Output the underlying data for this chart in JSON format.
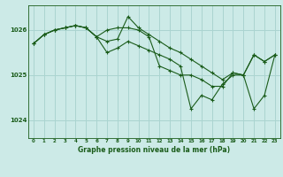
{
  "title": "Graphe pression niveau de la mer (hPa)",
  "background_color": "#cceae7",
  "grid_color": "#aad4d0",
  "line_color": "#1a5c1a",
  "marker_color": "#1a5c1a",
  "xlim": [
    -0.5,
    23.5
  ],
  "ylim": [
    1023.6,
    1026.55
  ],
  "yticks": [
    1024,
    1025,
    1026
  ],
  "xticks": [
    0,
    1,
    2,
    3,
    4,
    5,
    6,
    7,
    8,
    9,
    10,
    11,
    12,
    13,
    14,
    15,
    16,
    17,
    18,
    19,
    20,
    21,
    22,
    23
  ],
  "series": [
    [
      1025.7,
      1025.9,
      1026.0,
      1026.05,
      1026.1,
      1026.05,
      1025.85,
      1025.75,
      1025.8,
      1026.3,
      1026.05,
      1025.9,
      1025.75,
      1025.6,
      1025.5,
      1025.35,
      1025.2,
      1025.05,
      1024.9,
      1025.05,
      1025.0,
      1025.45,
      1025.3,
      1025.45
    ],
    [
      1025.7,
      1025.9,
      1026.0,
      1026.05,
      1026.1,
      1026.05,
      1025.85,
      1026.0,
      1026.05,
      1026.05,
      1026.0,
      1025.85,
      1025.2,
      1025.1,
      1025.0,
      1025.0,
      1024.9,
      1024.75,
      1024.75,
      1025.05,
      1025.0,
      1025.45,
      1025.3,
      1025.45
    ],
    [
      1025.7,
      1025.9,
      1026.0,
      1026.05,
      1026.1,
      1026.05,
      1025.85,
      1025.5,
      1025.6,
      1025.75,
      1025.65,
      1025.55,
      1025.45,
      1025.35,
      1025.2,
      1024.25,
      1024.55,
      1024.45,
      1024.8,
      1025.0,
      1025.0,
      1024.25,
      1024.55,
      1025.45
    ]
  ]
}
